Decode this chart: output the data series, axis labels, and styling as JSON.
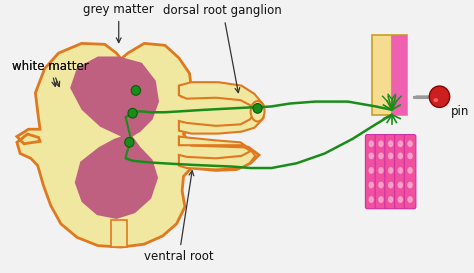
{
  "bg_color": "#f2f2f2",
  "colors": {
    "spinal_yellow": "#f0e8a0",
    "spinal_orange": "#e07820",
    "grey_matter": "#c06080",
    "green_nerve": "#1a8c1a",
    "green_dark": "#0a5a0a",
    "skin_outer": "#f5dc90",
    "skin_pink": "#f060b0",
    "muscle_pink": "#f050a0",
    "muscle_spot": "#f8a0c8",
    "pin_red": "#cc2020",
    "pin_grey": "#999999",
    "white": "#ffffff",
    "canal": "#e8dce8"
  },
  "labels": {
    "grey_matter": "grey matter",
    "white_matter": "white matter",
    "dorsal_root_ganglion": "dorsal root ganglion",
    "ventral_root": "ventral root",
    "pin": "pin"
  },
  "label_fontsize": 8.5
}
